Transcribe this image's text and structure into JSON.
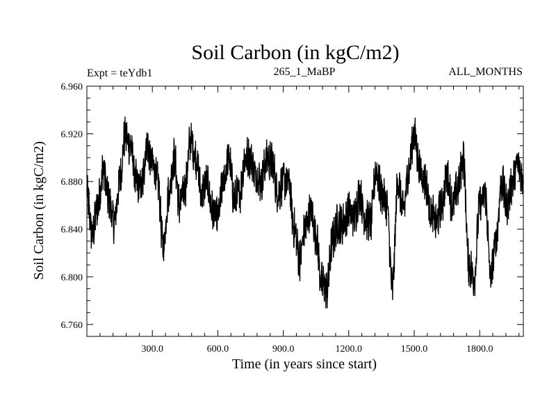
{
  "chart_data": {
    "type": "line",
    "title": "Soil Carbon (in kgC/m2)",
    "subtitle_left": "Expt = teYdb1",
    "subtitle_center": "265_1_MaBP",
    "subtitle_right": "ALL_MONTHS",
    "xlabel": "Time (in years since start)",
    "ylabel": "Soil Carbon (in kgC/m2)",
    "xlim": [
      0,
      2000
    ],
    "ylim": [
      6.75,
      6.96
    ],
    "x_ticks": [
      300,
      600,
      900,
      1200,
      1500,
      1800
    ],
    "x_tick_labels": [
      "300.0",
      "600.0",
      "900.0",
      "1200.0",
      "1500.0",
      "1800.0"
    ],
    "y_ticks": [
      6.76,
      6.8,
      6.84,
      6.88,
      6.92,
      6.96
    ],
    "y_tick_labels": [
      "6.760",
      "6.800",
      "6.840",
      "6.880",
      "6.920",
      "6.960"
    ],
    "series": [
      {
        "name": "soil_carbon",
        "color": "#000000",
        "x": [
          0,
          25,
          50,
          75,
          100,
          125,
          150,
          175,
          200,
          225,
          250,
          275,
          300,
          325,
          350,
          375,
          400,
          425,
          450,
          475,
          500,
          525,
          550,
          575,
          600,
          625,
          650,
          675,
          700,
          725,
          750,
          775,
          800,
          825,
          850,
          875,
          900,
          925,
          950,
          975,
          1000,
          1025,
          1050,
          1075,
          1100,
          1125,
          1150,
          1175,
          1200,
          1225,
          1250,
          1275,
          1300,
          1325,
          1350,
          1375,
          1400,
          1425,
          1450,
          1475,
          1500,
          1525,
          1550,
          1575,
          1600,
          1625,
          1650,
          1675,
          1700,
          1725,
          1750,
          1775,
          1800,
          1825,
          1850,
          1875,
          1900,
          1925,
          1950,
          1975,
          2000
        ],
        "values": [
          6.87,
          6.835,
          6.86,
          6.89,
          6.865,
          6.845,
          6.88,
          6.918,
          6.91,
          6.88,
          6.875,
          6.91,
          6.895,
          6.88,
          6.825,
          6.87,
          6.9,
          6.86,
          6.875,
          6.915,
          6.9,
          6.87,
          6.88,
          6.855,
          6.85,
          6.88,
          6.9,
          6.865,
          6.87,
          6.9,
          6.9,
          6.885,
          6.88,
          6.9,
          6.895,
          6.87,
          6.88,
          6.88,
          6.84,
          6.815,
          6.84,
          6.855,
          6.835,
          6.795,
          6.79,
          6.83,
          6.845,
          6.845,
          6.855,
          6.85,
          6.87,
          6.85,
          6.845,
          6.89,
          6.87,
          6.86,
          6.79,
          6.88,
          6.855,
          6.89,
          6.92,
          6.89,
          6.88,
          6.855,
          6.845,
          6.86,
          6.885,
          6.86,
          6.875,
          6.9,
          6.81,
          6.8,
          6.86,
          6.87,
          6.8,
          6.83,
          6.88,
          6.86,
          6.88,
          6.895,
          6.88
        ]
      }
    ]
  }
}
